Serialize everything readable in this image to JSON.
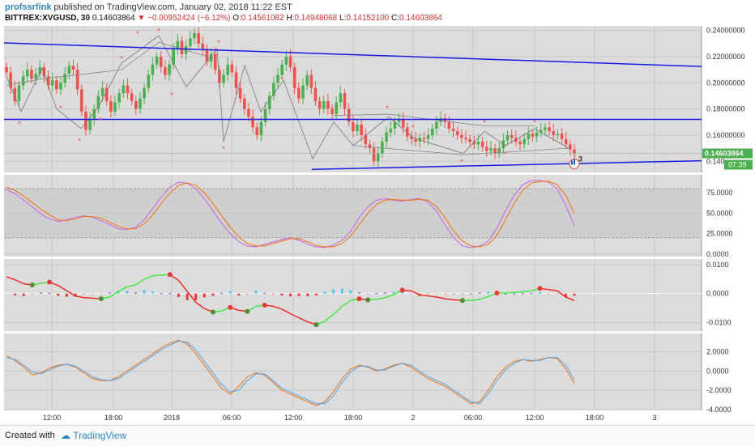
{
  "header": {
    "author": "profssrfink",
    "published_text": "published on TradingView.com, January 02, 2018 11:22 EST",
    "symbol": "BITTREX:XVGUSD, 30",
    "last": "0.14603864",
    "change": "−0.00952424 (−6.12%)",
    "o_label": "O:",
    "o_value": "0.14561082",
    "h_label": "H:",
    "h_value": "0.14948068",
    "l_label": "L:",
    "l_value": "0.14152100",
    "c_label": "C:",
    "c_value": "0.14603864"
  },
  "footer": {
    "created": "Created with",
    "logo": "TradingView"
  },
  "colors": {
    "up": "#4caf50",
    "down": "#ef5350",
    "trend": "#1a1ae6",
    "stoch_k": "#c070e0",
    "stoch_d": "#f07820",
    "osc_a": "#f07820",
    "osc_b": "#5aa8e8",
    "macd_green": "#44e844",
    "macd_red": "#ee2a2a"
  },
  "chart_data": [
    {
      "type": "candlestick",
      "pane": "price",
      "y_ticks": [
        "0.24000000",
        "0.22000000",
        "0.20000000",
        "0.18000000",
        "0.16000000",
        "0.140"
      ],
      "y_tick_values": [
        0.24,
        0.22,
        0.2,
        0.18,
        0.16,
        0.14
      ],
      "ylim": [
        0.1315,
        0.2435
      ],
      "last_price_label": "0.14603864",
      "countdown_label": "07:39",
      "marker_badge": "3",
      "close": [
        0.208,
        0.196,
        0.186,
        0.198,
        0.205,
        0.21,
        0.203,
        0.207,
        0.212,
        0.205,
        0.198,
        0.202,
        0.195,
        0.2,
        0.207,
        0.213,
        0.21,
        0.195,
        0.178,
        0.164,
        0.172,
        0.18,
        0.19,
        0.196,
        0.186,
        0.178,
        0.185,
        0.192,
        0.198,
        0.192,
        0.186,
        0.18,
        0.188,
        0.196,
        0.206,
        0.214,
        0.22,
        0.212,
        0.206,
        0.214,
        0.226,
        0.232,
        0.222,
        0.228,
        0.234,
        0.238,
        0.23,
        0.226,
        0.216,
        0.222,
        0.21,
        0.2,
        0.206,
        0.214,
        0.208,
        0.196,
        0.188,
        0.18,
        0.174,
        0.166,
        0.16,
        0.17,
        0.18,
        0.19,
        0.2,
        0.206,
        0.214,
        0.22,
        0.212,
        0.196,
        0.188,
        0.198,
        0.206,
        0.196,
        0.186,
        0.18,
        0.186,
        0.18,
        0.176,
        0.185,
        0.192,
        0.18,
        0.17,
        0.163,
        0.168,
        0.16,
        0.153,
        0.15,
        0.14,
        0.146,
        0.155,
        0.162,
        0.165,
        0.17,
        0.172,
        0.166,
        0.159,
        0.157,
        0.155,
        0.158,
        0.157,
        0.16,
        0.165,
        0.17,
        0.173,
        0.17,
        0.165,
        0.163,
        0.16,
        0.158,
        0.157,
        0.155,
        0.153,
        0.155,
        0.151,
        0.148,
        0.15,
        0.146,
        0.15,
        0.156,
        0.16,
        0.158,
        0.155,
        0.153,
        0.157,
        0.161,
        0.159,
        0.162,
        0.164,
        0.166,
        0.163,
        0.16,
        0.161,
        0.157,
        0.153,
        0.149,
        0.146
      ],
      "x_ticks": [
        "12:00",
        "18:00",
        "2018",
        "06:00",
        "12:00",
        "18:00",
        "2",
        "06:00",
        "12:00",
        "18:00",
        "3"
      ]
    },
    {
      "type": "line",
      "pane": "stochastic",
      "y_ticks": [
        "75.0000",
        "50.0000",
        "25.0000",
        "0.0000"
      ],
      "y_tick_values": [
        75,
        50,
        25,
        0
      ],
      "ylim": [
        -3,
        97
      ],
      "band": [
        20,
        80
      ],
      "series": [
        {
          "name": "",
          "values": [
            79,
            74,
            66,
            58,
            49,
            43,
            40,
            42,
            45,
            47,
            45,
            41,
            36,
            31,
            30,
            33,
            42,
            56,
            70,
            82,
            88,
            87,
            80,
            68,
            53,
            38,
            25,
            15,
            10,
            9,
            12,
            15,
            18,
            20,
            17,
            12,
            9,
            8,
            11,
            17,
            28,
            45,
            58,
            66,
            68,
            66,
            65,
            67,
            68,
            64,
            52,
            35,
            20,
            10,
            8,
            10,
            16,
            32,
            53,
            72,
            85,
            90,
            90,
            88,
            80,
            60,
            34
          ]
        },
        {
          "name": "",
          "values": [
            82,
            78,
            71,
            63,
            55,
            48,
            42,
            41,
            43,
            46,
            46,
            44,
            39,
            34,
            31,
            31,
            37,
            48,
            62,
            75,
            84,
            87,
            84,
            75,
            62,
            47,
            33,
            21,
            13,
            10,
            10,
            13,
            16,
            19,
            19,
            15,
            11,
            9,
            9,
            13,
            22,
            36,
            50,
            61,
            66,
            67,
            66,
            66,
            67,
            66,
            58,
            44,
            28,
            16,
            10,
            9,
            12,
            23,
            42,
            62,
            78,
            87,
            89,
            89,
            85,
            72,
            50
          ]
        }
      ]
    },
    {
      "type": "line",
      "pane": "macd",
      "y_ticks": [
        "0.0100",
        "0.0000",
        "-0.0100"
      ],
      "y_tick_values": [
        0.01,
        0,
        -0.01
      ],
      "ylim": [
        -0.013,
        0.012
      ],
      "series": [
        {
          "name": "",
          "values": [
            0.0058,
            0.0048,
            0.0034,
            0.003,
            0.0036,
            0.004,
            0.0028,
            0.001,
            -0.0008,
            -0.0014,
            -0.0016,
            -0.0018,
            -0.0012,
            0.0008,
            0.0024,
            0.003,
            0.005,
            0.0062,
            0.0064,
            0.0066,
            0.0046,
            0.0008,
            -0.003,
            -0.0052,
            -0.0064,
            -0.006,
            -0.0048,
            -0.0058,
            -0.0062,
            -0.0044,
            -0.004,
            -0.0044,
            -0.0054,
            -0.007,
            -0.0084,
            -0.0098,
            -0.0108,
            -0.0096,
            -0.0072,
            -0.0044,
            -0.0024,
            -0.0018,
            -0.0022,
            -0.002,
            -0.0014,
            -0.0004,
            0.0012,
            0.001,
            -0.0004,
            -0.0008,
            -0.0012,
            -0.0018,
            -0.0022,
            -0.0024,
            -0.0024,
            -0.002,
            -0.001,
            0.0002,
            0.0002,
            0.0004,
            0.0006,
            0.001,
            0.0018,
            0.0014,
            0.001,
            -0.0012,
            -0.0024
          ]
        }
      ]
    },
    {
      "type": "line",
      "pane": "oscillator",
      "y_ticks": [
        "2.0000",
        "0.0000",
        "-2.0000",
        "-4.0000"
      ],
      "y_tick_values": [
        2,
        0,
        -2,
        -4
      ],
      "ylim": [
        -4.1,
        3.9
      ],
      "series": [
        {
          "name": "",
          "values": [
            1.6,
            1.1,
            0.4,
            -0.4,
            -0.2,
            0.3,
            0.6,
            0.7,
            0.4,
            -0.2,
            -0.8,
            -1.0,
            -1.0,
            -0.6,
            0.0,
            0.6,
            1.2,
            1.8,
            2.4,
            2.9,
            3.2,
            2.8,
            1.8,
            0.6,
            -0.6,
            -1.8,
            -2.4,
            -1.6,
            -0.6,
            -0.2,
            -0.4,
            -1.2,
            -2.0,
            -2.4,
            -2.8,
            -3.2,
            -3.6,
            -3.2,
            -2.2,
            -0.8,
            0.2,
            0.6,
            0.4,
            0.0,
            0.2,
            0.6,
            0.8,
            0.4,
            -0.2,
            -0.8,
            -1.2,
            -1.6,
            -2.2,
            -2.8,
            -3.4,
            -3.2,
            -2.0,
            -0.6,
            0.4,
            1.0,
            1.2,
            1.0,
            1.2,
            1.4,
            1.3,
            0.2,
            -1.3
          ]
        },
        {
          "name": "",
          "values": [
            1.4,
            1.2,
            0.6,
            -0.1,
            -0.3,
            0.1,
            0.5,
            0.7,
            0.5,
            0.0,
            -0.6,
            -0.9,
            -1.0,
            -0.8,
            -0.2,
            0.4,
            1.0,
            1.6,
            2.2,
            2.7,
            3.1,
            3.0,
            2.2,
            1.0,
            -0.2,
            -1.4,
            -2.2,
            -2.0,
            -1.0,
            -0.3,
            -0.3,
            -1.0,
            -1.8,
            -2.2,
            -2.6,
            -3.0,
            -3.4,
            -3.4,
            -2.6,
            -1.2,
            -0.1,
            0.5,
            0.5,
            0.1,
            0.1,
            0.5,
            0.8,
            0.6,
            0.0,
            -0.6,
            -1.0,
            -1.4,
            -2.0,
            -2.6,
            -3.2,
            -3.4,
            -2.4,
            -1.0,
            0.1,
            0.8,
            1.2,
            1.1,
            1.1,
            1.4,
            1.4,
            0.6,
            -0.9
          ]
        }
      ]
    }
  ]
}
